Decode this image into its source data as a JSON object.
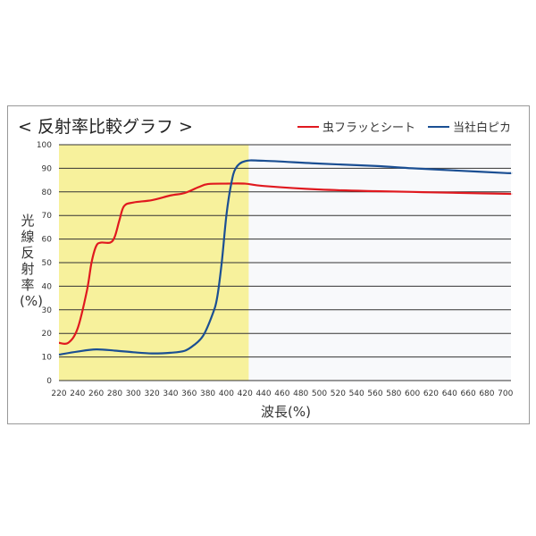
{
  "chart_data": {
    "type": "line",
    "title": "< 反射率比較グラフ >",
    "xlabel": "波長(%)",
    "ylabel": "光線反射率(%)",
    "xlim": [
      220,
      706
    ],
    "ylim": [
      0,
      100
    ],
    "xticks": [
      220,
      240,
      260,
      280,
      300,
      320,
      340,
      360,
      380,
      400,
      420,
      440,
      460,
      480,
      500,
      520,
      540,
      560,
      580,
      600,
      620,
      640,
      660,
      680,
      700
    ],
    "yticks": [
      0,
      10,
      20,
      30,
      40,
      50,
      60,
      70,
      80,
      90,
      100
    ],
    "grid": "horizontal",
    "legend_position": "top-right",
    "highlight_region": {
      "x_range": [
        220,
        424
      ],
      "color": "#f7f19c"
    },
    "background_color": "#f8f9fb",
    "series": [
      {
        "name": "虫フラッとシート",
        "color": "#e0191f",
        "x": [
          220,
          230,
          240,
          250,
          255,
          260,
          265,
          275,
          280,
          285,
          290,
          300,
          320,
          340,
          355,
          370,
          380,
          400,
          420,
          440,
          500,
          560,
          600,
          620,
          650,
          700,
          706
        ],
        "y": [
          16,
          16,
          22,
          38,
          50,
          57,
          58.5,
          58.5,
          61,
          68,
          74,
          75.5,
          76.5,
          78.5,
          79.5,
          82,
          83.3,
          83.5,
          83.5,
          82.5,
          81,
          80.3,
          80,
          79.8,
          79.6,
          79.2,
          79.2
        ]
      },
      {
        "name": "当社白ピカ",
        "color": "#1b4f93",
        "x": [
          220,
          240,
          260,
          280,
          300,
          320,
          340,
          355,
          365,
          375,
          385,
          390,
          395,
          400,
          405,
          410,
          420,
          440,
          500,
          560,
          600,
          650,
          700,
          706
        ],
        "y": [
          11,
          12.3,
          13.2,
          12.7,
          12,
          11.5,
          11.8,
          12.6,
          15,
          19,
          28,
          35,
          50,
          70,
          83,
          90,
          93,
          93.2,
          92,
          91,
          90,
          89,
          88,
          88
        ]
      }
    ]
  }
}
